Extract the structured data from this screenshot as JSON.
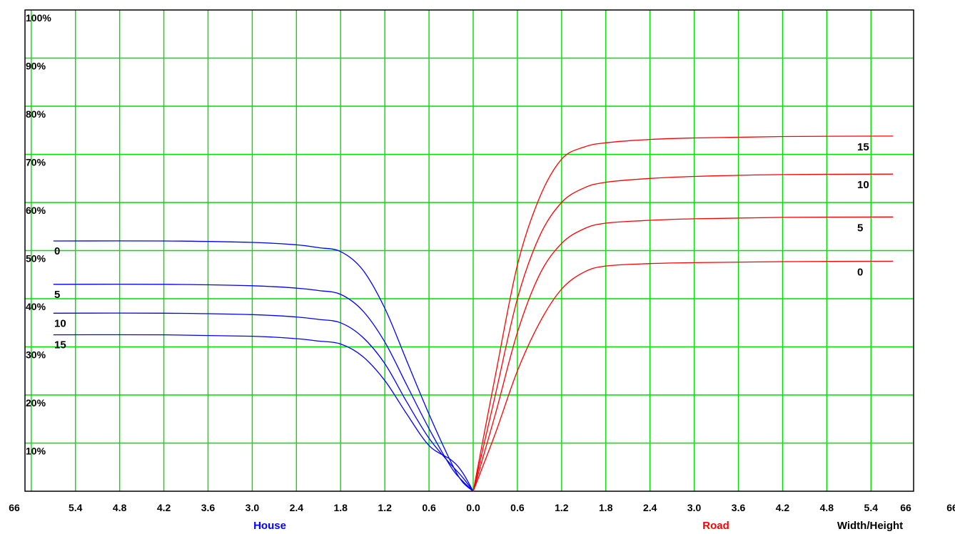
{
  "chart_data": {
    "type": "line",
    "ylim": [
      0,
      100
    ],
    "y_ticks": [
      "100%",
      "90%",
      "80%",
      "70%",
      "60%",
      "50%",
      "40%",
      "30%",
      "20%",
      "10%"
    ],
    "x_ticks": [
      "66",
      "5.4",
      "4.8",
      "4.2",
      "3.6",
      "3.0",
      "2.4",
      "1.8",
      "1.2",
      "0.6",
      "0.0",
      "0.6",
      "1.2",
      "1.8",
      "2.4",
      "3.0",
      "3.6",
      "4.2",
      "4.8",
      "5.4",
      "66",
      "66"
    ],
    "x_captions": {
      "left": "House",
      "right": "Road",
      "axis": "Width/Height"
    },
    "grid": true,
    "colors": {
      "grid": "#00dd00",
      "house": "#0000ff",
      "road": "#ff0000",
      "frame": "#000000"
    },
    "house_series": [
      {
        "name": "0",
        "x": [
          5.7,
          4.2,
          3.0,
          2.4,
          2.1,
          1.8,
          1.5,
          1.2,
          0.9,
          0.6,
          0.3,
          0.15,
          0.0
        ],
        "y": [
          52,
          52,
          51.7,
          51.2,
          50.6,
          49.8,
          46,
          38,
          27,
          16,
          6,
          2,
          0
        ]
      },
      {
        "name": "5",
        "x": [
          5.7,
          4.2,
          3.0,
          2.4,
          2.1,
          1.8,
          1.5,
          1.2,
          0.9,
          0.6,
          0.3,
          0.15,
          0.0
        ],
        "y": [
          43,
          43,
          42.7,
          42.2,
          41.7,
          40.9,
          37.5,
          31,
          22,
          13,
          5,
          2.2,
          0
        ]
      },
      {
        "name": "10",
        "x": [
          5.7,
          4.2,
          3.0,
          2.4,
          2.1,
          1.8,
          1.5,
          1.2,
          0.9,
          0.6,
          0.3,
          0.15,
          0.0
        ],
        "y": [
          37,
          37,
          36.7,
          36.2,
          35.7,
          35,
          32,
          26.5,
          18.5,
          11,
          5.5,
          3,
          0
        ]
      },
      {
        "name": "15",
        "x": [
          5.7,
          4.2,
          3.0,
          2.4,
          2.1,
          1.8,
          1.5,
          1.2,
          0.9,
          0.6,
          0.3,
          0.15,
          0.0
        ],
        "y": [
          32.5,
          32.5,
          32.2,
          31.7,
          31.2,
          30.6,
          28,
          23,
          16,
          9.5,
          6.5,
          4,
          0
        ]
      }
    ],
    "road_series": [
      {
        "name": "15",
        "x": [
          0.0,
          0.3,
          0.6,
          0.9,
          1.2,
          1.5,
          1.8,
          2.4,
          3.0,
          4.2,
          5.7
        ],
        "y": [
          0,
          24,
          47,
          61,
          69,
          71.5,
          72.4,
          73.1,
          73.4,
          73.7,
          73.8
        ]
      },
      {
        "name": "10",
        "x": [
          0.0,
          0.3,
          0.6,
          0.9,
          1.2,
          1.5,
          1.8,
          2.4,
          3.0,
          4.2,
          5.7
        ],
        "y": [
          0,
          20,
          40,
          53,
          60,
          63,
          64.2,
          65,
          65.4,
          65.8,
          65.9
        ]
      },
      {
        "name": "5",
        "x": [
          0.0,
          0.3,
          0.6,
          0.9,
          1.2,
          1.5,
          1.8,
          2.4,
          3.0,
          4.2,
          5.7
        ],
        "y": [
          0,
          16,
          33,
          45,
          51.5,
          54.5,
          55.7,
          56.3,
          56.6,
          56.9,
          57
        ]
      },
      {
        "name": "0",
        "x": [
          0.0,
          0.3,
          0.6,
          0.9,
          1.2,
          1.5,
          1.8,
          2.4,
          3.0,
          4.2,
          5.7
        ],
        "y": [
          0,
          12,
          25,
          35,
          42,
          45.5,
          46.8,
          47.3,
          47.5,
          47.7,
          47.8
        ]
      }
    ]
  }
}
